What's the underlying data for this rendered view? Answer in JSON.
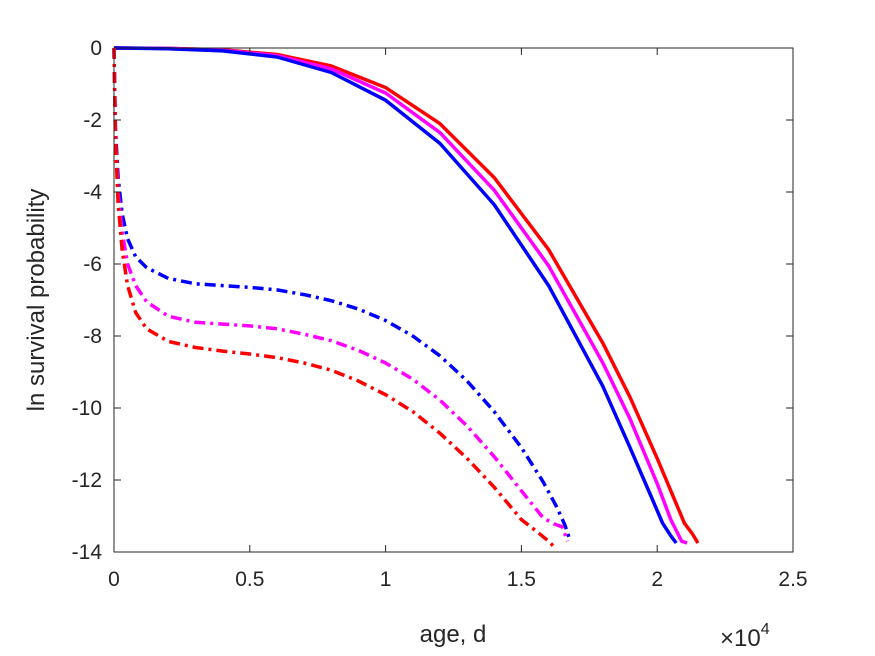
{
  "chart_data": {
    "type": "line",
    "title": "",
    "xlabel": "age, d",
    "ylabel": "ln survival probability",
    "x_exponent_label": {
      "base": "×10",
      "power": "4"
    },
    "xlim": [
      0,
      25000
    ],
    "ylim": [
      -14,
      0
    ],
    "xticks": [
      0,
      5000,
      10000,
      15000,
      20000,
      25000
    ],
    "xtick_labels": [
      "0",
      "0.5",
      "1",
      "1.5",
      "2",
      "2.5"
    ],
    "yticks": [
      0,
      -2,
      -4,
      -6,
      -8,
      -10,
      -12,
      -14
    ],
    "ytick_labels": [
      "0",
      "-2",
      "-4",
      "-6",
      "-8",
      "-10",
      "-12",
      "-14"
    ],
    "grid": false,
    "box": true,
    "series": [
      {
        "color": "#ff0000",
        "style": "solid",
        "x": [
          0,
          2000,
          4000,
          6000,
          8000,
          10000,
          12000,
          14000,
          16000,
          18000,
          19000,
          20000,
          20500,
          21000,
          21300,
          21500
        ],
        "y": [
          0,
          -0.01,
          -0.05,
          -0.18,
          -0.5,
          -1.1,
          -2.1,
          -3.6,
          -5.6,
          -8.2,
          -9.7,
          -11.4,
          -12.3,
          -13.2,
          -13.5,
          -13.75
        ]
      },
      {
        "color": "#ff00ff",
        "style": "solid",
        "x": [
          0,
          2000,
          4000,
          6000,
          8000,
          10000,
          12000,
          14000,
          16000,
          18000,
          19000,
          20000,
          20500,
          20900,
          21100
        ],
        "y": [
          0,
          -0.01,
          -0.06,
          -0.21,
          -0.58,
          -1.25,
          -2.35,
          -3.95,
          -6.05,
          -8.75,
          -10.3,
          -12.1,
          -13.1,
          -13.7,
          -13.75
        ]
      },
      {
        "color": "#0000ff",
        "style": "solid",
        "x": [
          0,
          2000,
          4000,
          6000,
          8000,
          10000,
          12000,
          14000,
          16000,
          18000,
          19000,
          19800,
          20200,
          20500,
          20700
        ],
        "y": [
          0,
          -0.02,
          -0.08,
          -0.25,
          -0.68,
          -1.45,
          -2.65,
          -4.35,
          -6.6,
          -9.4,
          -11.1,
          -12.5,
          -13.2,
          -13.55,
          -13.75
        ]
      },
      {
        "color": "#0000ff",
        "style": "dashdot",
        "x": [
          0,
          50,
          150,
          300,
          500,
          800,
          1200,
          2000,
          3000,
          4000,
          5000,
          6000,
          7000,
          8000,
          9000,
          10000,
          11000,
          12000,
          13000,
          14000,
          15000,
          15800,
          16300,
          16600,
          16800
        ],
        "y": [
          0,
          -2.2,
          -3.6,
          -4.6,
          -5.3,
          -5.8,
          -6.1,
          -6.4,
          -6.55,
          -6.6,
          -6.65,
          -6.72,
          -6.85,
          -7.02,
          -7.25,
          -7.57,
          -8.0,
          -8.55,
          -9.25,
          -10.1,
          -11.1,
          -12.05,
          -12.75,
          -13.25,
          -13.7
        ]
      },
      {
        "color": "#ff00ff",
        "style": "dashdot",
        "x": [
          0,
          50,
          150,
          300,
          500,
          800,
          1200,
          2000,
          3000,
          4000,
          5000,
          6000,
          7000,
          8000,
          9000,
          10000,
          11000,
          12000,
          13000,
          14000,
          15000,
          15800,
          16200,
          16500,
          16700
        ],
        "y": [
          0,
          -2.4,
          -4.0,
          -5.1,
          -6.0,
          -6.6,
          -7.05,
          -7.45,
          -7.62,
          -7.67,
          -7.72,
          -7.8,
          -7.95,
          -8.13,
          -8.4,
          -8.75,
          -9.2,
          -9.78,
          -10.5,
          -11.35,
          -12.3,
          -13.05,
          -13.22,
          -13.3,
          -13.7
        ]
      },
      {
        "color": "#ff0000",
        "style": "dashdot",
        "x": [
          0,
          50,
          150,
          300,
          500,
          800,
          1200,
          2000,
          3000,
          4000,
          5000,
          6000,
          7000,
          8000,
          9000,
          10000,
          11000,
          12000,
          13000,
          14000,
          15000,
          15600,
          16000,
          16200
        ],
        "y": [
          0,
          -2.5,
          -4.3,
          -5.6,
          -6.6,
          -7.35,
          -7.8,
          -8.15,
          -8.32,
          -8.42,
          -8.5,
          -8.6,
          -8.75,
          -8.95,
          -9.25,
          -9.63,
          -10.1,
          -10.7,
          -11.4,
          -12.2,
          -13.1,
          -13.45,
          -13.7,
          -13.85
        ]
      }
    ]
  }
}
